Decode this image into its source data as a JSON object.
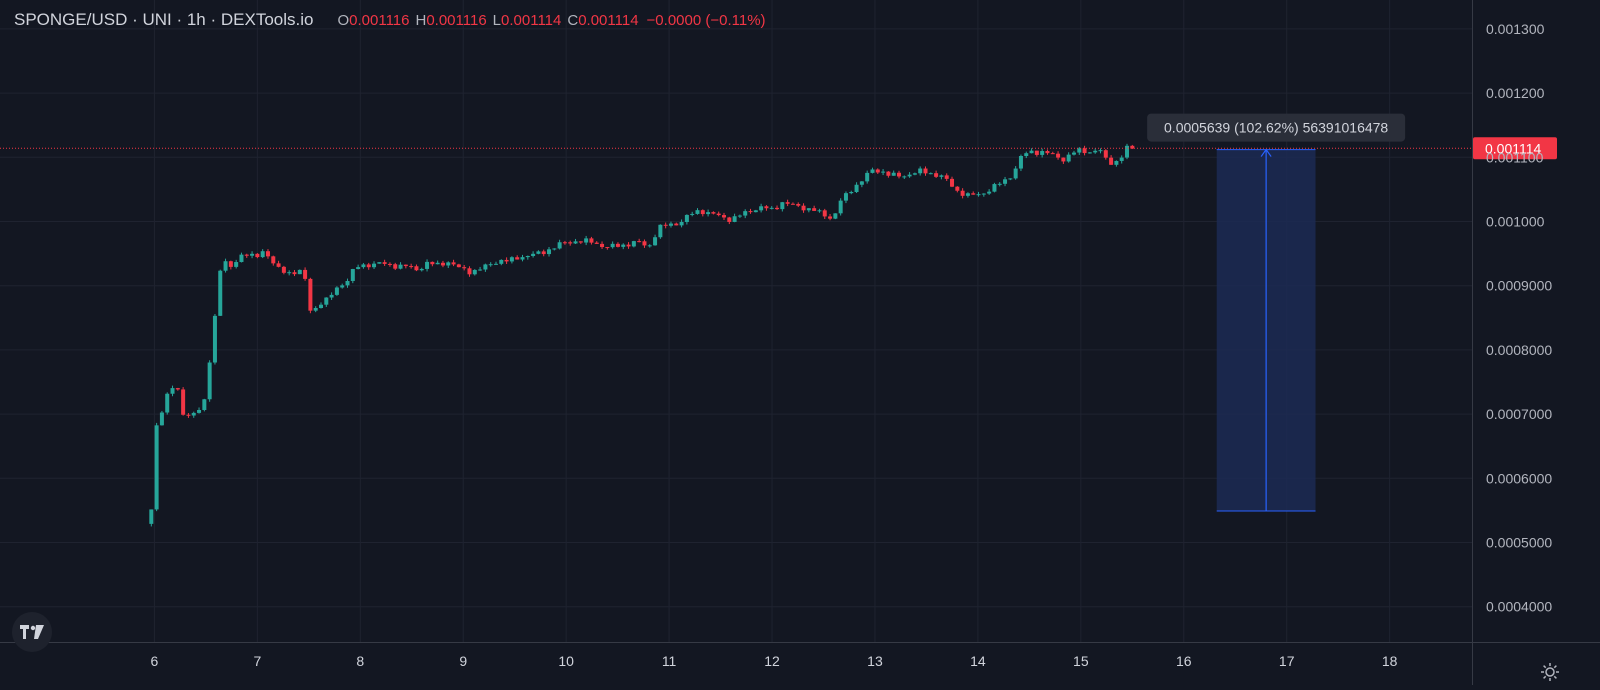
{
  "legend": {
    "symbol": "SPONGE/USD · UNI · 1h · DEXTools.io",
    "open_label": "O",
    "open": "0.001116",
    "high_label": "H",
    "high": "0.001116",
    "low_label": "L",
    "low": "0.001114",
    "close_label": "C",
    "close": "0.001114",
    "change": "−0.0000 (−0.11%)"
  },
  "colors": {
    "background": "#131722",
    "grid": "#1f2330",
    "up": "#26a69a",
    "down": "#f23645",
    "measure_fill": "#1c2a54",
    "measure_line": "#2962ff",
    "text": "#d1d4dc"
  },
  "icons": {
    "logo": "tradingview-logo-icon",
    "settings": "gear-icon"
  },
  "chart_data": {
    "type": "candlestick",
    "y_ticks": [
      "0.001300",
      "0.001200",
      "0.001100",
      "0.001000",
      "0.0009000",
      "0.0008000",
      "0.0007000",
      "0.0006000",
      "0.0005000",
      "0.0004000"
    ],
    "y_tick_values": [
      0.0013,
      0.0012,
      0.0011,
      0.001,
      0.0009,
      0.0008,
      0.0007,
      0.0006,
      0.0005,
      0.0004
    ],
    "x_ticks": [
      "6",
      "7",
      "8",
      "9",
      "10",
      "11",
      "12",
      "13",
      "14",
      "15",
      "16",
      "17",
      "18"
    ],
    "x_tick_values": [
      6,
      7,
      8,
      9,
      10,
      11,
      12,
      13,
      14,
      15,
      16,
      17,
      18
    ],
    "ylim": [
      0.000345,
      0.001345
    ],
    "xlim": [
      4.5,
      18.8
    ],
    "last_price": 0.001114,
    "last_price_label": "0.001114",
    "measure": {
      "x_start": 16.32,
      "x_end": 17.28,
      "y_low": 0.000549,
      "y_high": 0.001112,
      "label": "0.0005639 (102.62%) 56391016478"
    },
    "close_path": [
      [
        5.97,
        0.000549
      ],
      [
        5.98,
        0.00066
      ],
      [
        6.08,
        0.00071
      ],
      [
        6.12,
        0.00073
      ],
      [
        6.17,
        0.000742
      ],
      [
        6.22,
        0.00074
      ],
      [
        6.27,
        0.0007
      ],
      [
        6.35,
        0.0007
      ],
      [
        6.42,
        0.000705
      ],
      [
        6.48,
        0.000712
      ],
      [
        6.55,
        0.0008
      ],
      [
        6.6,
        0.00087
      ],
      [
        6.65,
        0.00094
      ],
      [
        6.7,
        0.000935
      ],
      [
        6.75,
        0.000925
      ],
      [
        6.82,
        0.000948
      ],
      [
        6.92,
        0.00095
      ],
      [
        6.98,
        0.00094
      ],
      [
        7.05,
        0.000955
      ],
      [
        7.12,
        0.000945
      ],
      [
        7.2,
        0.000925
      ],
      [
        7.28,
        0.00092
      ],
      [
        7.38,
        0.000922
      ],
      [
        7.45,
        0.000925
      ],
      [
        7.5,
        0.000862
      ],
      [
        7.55,
        0.000862
      ],
      [
        7.62,
        0.000875
      ],
      [
        7.7,
        0.00088
      ],
      [
        7.78,
        0.000898
      ],
      [
        7.85,
        0.000905
      ],
      [
        7.9,
        0.000915
      ],
      [
        7.95,
        0.000928
      ],
      [
        8.05,
        0.000932
      ],
      [
        8.15,
        0.000935
      ],
      [
        8.3,
        0.000932
      ],
      [
        8.45,
        0.00093
      ],
      [
        8.55,
        0.000925
      ],
      [
        8.65,
        0.000935
      ],
      [
        8.75,
        0.000932
      ],
      [
        8.85,
        0.000938
      ],
      [
        8.95,
        0.000928
      ],
      [
        9.05,
        0.000922
      ],
      [
        9.15,
        0.000925
      ],
      [
        9.25,
        0.000932
      ],
      [
        9.35,
        0.00094
      ],
      [
        9.45,
        0.000938
      ],
      [
        9.55,
        0.000945
      ],
      [
        9.65,
        0.000948
      ],
      [
        9.75,
        0.00095
      ],
      [
        9.85,
        0.000958
      ],
      [
        9.95,
        0.000965
      ],
      [
        10.1,
        0.00097
      ],
      [
        10.25,
        0.000968
      ],
      [
        10.4,
        0.00096
      ],
      [
        10.5,
        0.000962
      ],
      [
        10.6,
        0.000965
      ],
      [
        10.7,
        0.000968
      ],
      [
        10.8,
        0.00096
      ],
      [
        10.9,
        0.00099
      ],
      [
        11.0,
        0.000995
      ],
      [
        11.1,
        0.000998
      ],
      [
        11.2,
        0.00101
      ],
      [
        11.3,
        0.001018
      ],
      [
        11.4,
        0.001012
      ],
      [
        11.5,
        0.001008
      ],
      [
        11.6,
        0.001003
      ],
      [
        11.7,
        0.00101
      ],
      [
        11.8,
        0.001018
      ],
      [
        11.9,
        0.001022
      ],
      [
        12.0,
        0.001018
      ],
      [
        12.1,
        0.00103
      ],
      [
        12.2,
        0.001025
      ],
      [
        12.3,
        0.001022
      ],
      [
        12.4,
        0.001018
      ],
      [
        12.5,
        0.00101
      ],
      [
        12.6,
        0.001005
      ],
      [
        12.65,
        0.00103
      ],
      [
        12.72,
        0.00104
      ],
      [
        12.8,
        0.001055
      ],
      [
        12.88,
        0.001065
      ],
      [
        12.95,
        0.001078
      ],
      [
        13.05,
        0.00108
      ],
      [
        13.15,
        0.001072
      ],
      [
        13.25,
        0.00107
      ],
      [
        13.35,
        0.001075
      ],
      [
        13.45,
        0.001078
      ],
      [
        13.55,
        0.001075
      ],
      [
        13.65,
        0.00107
      ],
      [
        13.72,
        0.00106
      ],
      [
        13.8,
        0.001048
      ],
      [
        13.9,
        0.00104
      ],
      [
        14.0,
        0.001042
      ],
      [
        14.1,
        0.001048
      ],
      [
        14.2,
        0.001058
      ],
      [
        14.3,
        0.001068
      ],
      [
        14.38,
        0.001085
      ],
      [
        14.42,
        0.0011
      ],
      [
        14.5,
        0.00111
      ],
      [
        14.6,
        0.001108
      ],
      [
        14.7,
        0.001105
      ],
      [
        14.8,
        0.0011
      ],
      [
        14.85,
        0.001095
      ],
      [
        14.9,
        0.001105
      ],
      [
        15.0,
        0.001112
      ],
      [
        15.1,
        0.001108
      ],
      [
        15.2,
        0.00111
      ],
      [
        15.25,
        0.001095
      ],
      [
        15.32,
        0.001092
      ],
      [
        15.38,
        0.001095
      ],
      [
        15.45,
        0.001115
      ],
      [
        15.5,
        0.001114
      ]
    ]
  }
}
